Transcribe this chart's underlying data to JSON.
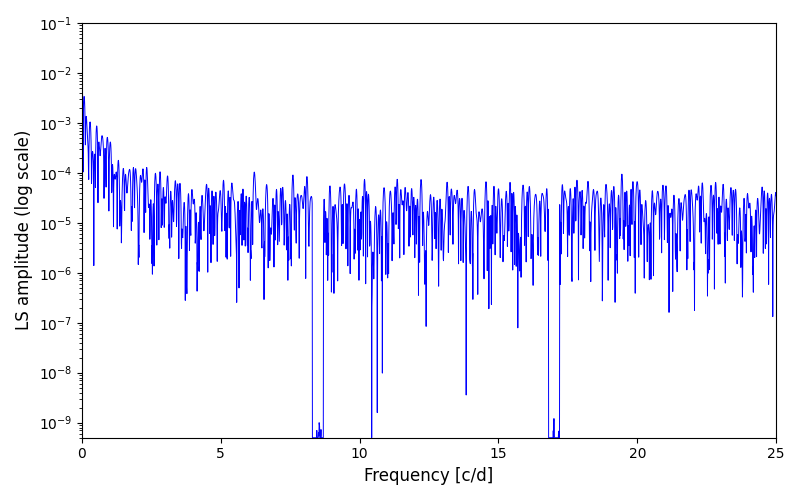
{
  "title": "",
  "xlabel": "Frequency [c/d]",
  "ylabel": "LS amplitude (log scale)",
  "xlim": [
    0,
    25
  ],
  "ylim": [
    5e-10,
    0.1
  ],
  "line_color": "#0000ff",
  "line_width": 0.7,
  "background_color": "#ffffff",
  "freq_min": 0.0,
  "freq_max": 25.0,
  "n_points": 3000,
  "seed": 7,
  "xlabel_fontsize": 12,
  "ylabel_fontsize": 12
}
